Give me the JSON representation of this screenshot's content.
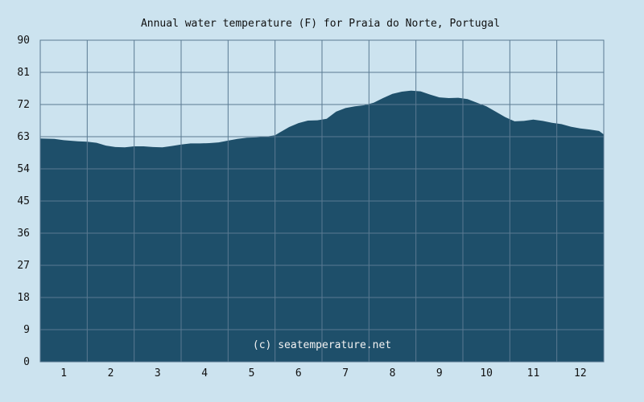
{
  "chart_data": {
    "type": "area",
    "title": "Annual water temperature (F) for Praia do Norte, Portugal",
    "watermark": "(c) seatemperature.net",
    "xlabel": "",
    "ylabel": "",
    "ylim": [
      0,
      90
    ],
    "yticks": [
      "0",
      "9",
      "18",
      "27",
      "36",
      "45",
      "54",
      "63",
      "72",
      "81",
      "90"
    ],
    "xlim": [
      0.5,
      12.5
    ],
    "categories": [
      "1",
      "2",
      "3",
      "4",
      "5",
      "6",
      "7",
      "8",
      "9",
      "10",
      "11",
      "12"
    ],
    "grid": true,
    "colors": {
      "fill": "#1e4f6a",
      "background": "#cce3ef",
      "grid": "#5a7a92"
    },
    "series": [
      {
        "x": [
          0.5,
          0.8,
          1.0,
          1.3,
          1.5,
          1.7,
          1.9,
          2.1,
          2.3,
          2.5,
          2.7,
          2.9,
          3.1,
          3.3,
          3.5,
          3.7,
          3.9,
          4.1,
          4.3,
          4.5,
          4.7,
          4.9,
          5.1,
          5.3,
          5.5,
          5.6,
          5.8,
          6.0,
          6.2,
          6.4,
          6.6,
          6.8,
          7.0,
          7.2,
          7.4,
          7.6,
          7.8,
          8.0,
          8.2,
          8.4,
          8.6,
          8.8,
          9.0,
          9.2,
          9.4,
          9.6,
          9.8,
          10.0,
          10.2,
          10.4,
          10.6,
          10.8,
          11.0,
          11.2,
          11.4,
          11.6,
          11.8,
          12.0,
          12.2,
          12.4,
          12.5
        ],
        "values": [
          62.5,
          62.4,
          62.0,
          61.7,
          61.6,
          61.3,
          60.5,
          60.1,
          60.0,
          60.3,
          60.3,
          60.1,
          60.0,
          60.4,
          60.8,
          61.1,
          61.1,
          61.2,
          61.4,
          61.9,
          62.4,
          62.7,
          62.8,
          63.0,
          63.4,
          64.2,
          65.7,
          66.8,
          67.5,
          67.6,
          68.0,
          70.0,
          71.0,
          71.5,
          71.8,
          72.5,
          73.8,
          75.0,
          75.6,
          75.9,
          75.7,
          74.8,
          74.0,
          73.8,
          73.9,
          73.5,
          72.5,
          71.5,
          70.0,
          68.5,
          67.3,
          67.4,
          67.8,
          67.4,
          66.9,
          66.5,
          65.8,
          65.3,
          65.0,
          64.6,
          63.6
        ]
      }
    ]
  }
}
